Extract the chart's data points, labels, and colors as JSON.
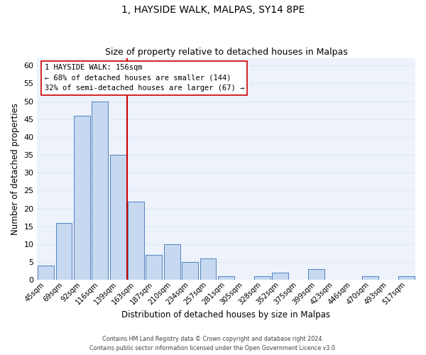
{
  "title": "1, HAYSIDE WALK, MALPAS, SY14 8PE",
  "subtitle": "Size of property relative to detached houses in Malpas",
  "xlabel": "Distribution of detached houses by size in Malpas",
  "ylabel": "Number of detached properties",
  "bar_labels": [
    "45sqm",
    "69sqm",
    "92sqm",
    "116sqm",
    "139sqm",
    "163sqm",
    "187sqm",
    "210sqm",
    "234sqm",
    "257sqm",
    "281sqm",
    "305sqm",
    "328sqm",
    "352sqm",
    "375sqm",
    "399sqm",
    "423sqm",
    "446sqm",
    "470sqm",
    "493sqm",
    "517sqm"
  ],
  "bar_values": [
    4,
    16,
    46,
    50,
    35,
    22,
    7,
    10,
    5,
    6,
    1,
    0,
    1,
    2,
    0,
    3,
    0,
    0,
    1,
    0,
    1
  ],
  "bar_color": "#c6d9f0",
  "bar_edge_color": "#4f81bd",
  "reference_line_color": "#cc0000",
  "ylim": [
    0,
    62
  ],
  "yticks": [
    0,
    5,
    10,
    15,
    20,
    25,
    30,
    35,
    40,
    45,
    50,
    55,
    60
  ],
  "annotation_title": "1 HAYSIDE WALK: 156sqm",
  "annotation_line1": "← 68% of detached houses are smaller (144)",
  "annotation_line2": "32% of semi-detached houses are larger (67) →",
  "footer_line1": "Contains HM Land Registry data © Crown copyright and database right 2024.",
  "footer_line2": "Contains public sector information licensed under the Open Government Licence v3.0.",
  "grid_color": "#dde8f5",
  "background_color": "#edf2fb"
}
